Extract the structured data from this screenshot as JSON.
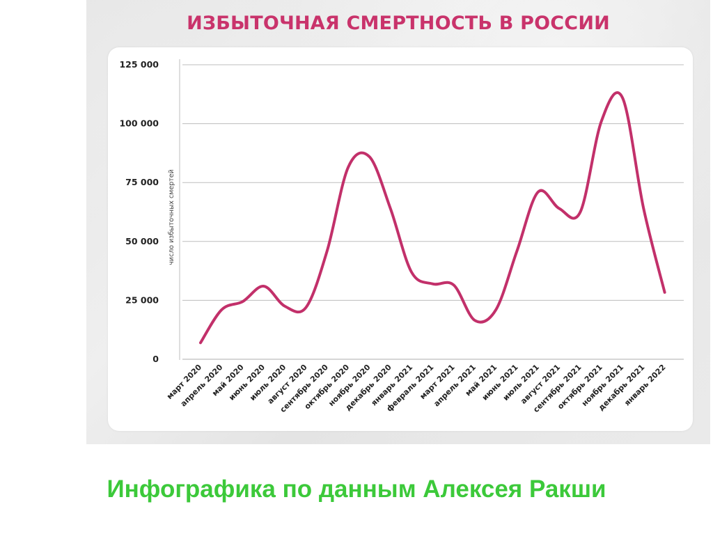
{
  "slide": {
    "caption": "Инфографика по данным Алексея Ракши",
    "caption_color": "#3cc93a",
    "background_color": "#ffffff",
    "panel_color": "#e8e8e8",
    "card_color": "#ffffff"
  },
  "chart_data": {
    "type": "line",
    "title": "ИЗБЫТОЧНАЯ СМЕРТНОСТЬ В РОССИИ",
    "title_color": "#c9336b",
    "line_color": "#c2306a",
    "grid_color": "#bdbdbd",
    "xlabel": "",
    "ylabel": "число избыточных смертей",
    "ylim": [
      0,
      125000
    ],
    "yticks": [
      0,
      25000,
      50000,
      75000,
      100000,
      125000
    ],
    "ytick_labels": [
      "0",
      "25 000",
      "50 000",
      "75 000",
      "100 000",
      "125 000"
    ],
    "grid": true,
    "legend": null,
    "smoothed": true,
    "categories": [
      "март 2020",
      "апрель 2020",
      "май 2020",
      "июнь 2020",
      "июль 2020",
      "август 2020",
      "сентябрь 2020",
      "октябрь 2020",
      "ноябрь 2020",
      "декабрь 2020",
      "январь 2021",
      "февраль 2021",
      "март 2021",
      "апрель 2021",
      "май 2021",
      "июнь 2021",
      "июль 2021",
      "август 2021",
      "сентябрь 2021",
      "октябрь 2021",
      "ноябрь 2021",
      "декабрь 2021",
      "январь 2022"
    ],
    "series": [
      {
        "name": "избыточные смерти",
        "values": [
          7000,
          21000,
          24500,
          31000,
          22500,
          22000,
          46000,
          81500,
          86000,
          64000,
          37000,
          32000,
          31500,
          16500,
          21000,
          46000,
          71000,
          64000,
          62500,
          101000,
          111000,
          64000,
          28400
        ]
      }
    ]
  }
}
